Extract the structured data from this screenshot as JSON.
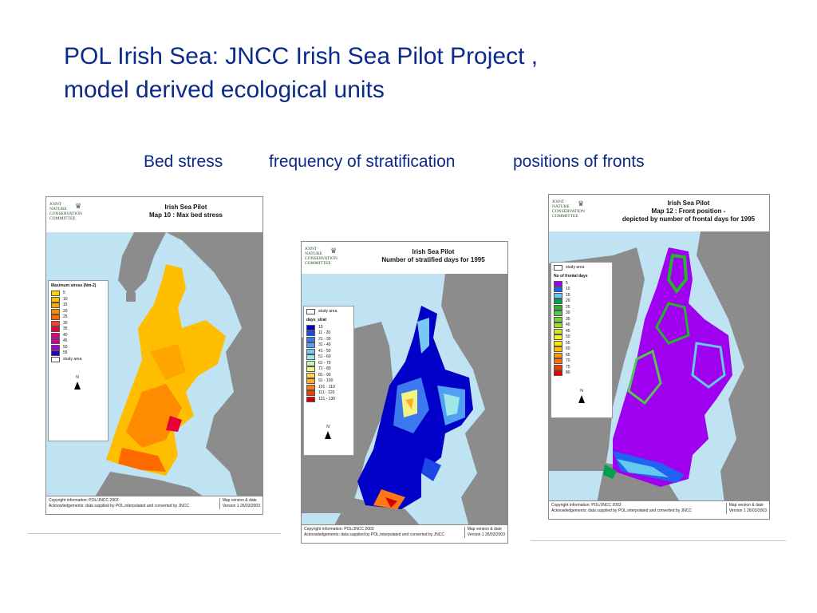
{
  "slide": {
    "title_line1": "POL Irish Sea: JNCC Irish Sea Pilot Project ,",
    "title_line2": "model derived ecological units",
    "subtitles": [
      "Bed stress",
      "frequency of stratification",
      "positions of fronts"
    ]
  },
  "colors": {
    "title": "#0a2a8c",
    "sea": "#bfe3f3",
    "land": "#8c8c8c"
  },
  "maps": [
    {
      "logo": [
        "JOINT",
        "NATURE",
        "CONSERVATION",
        "COMMITTEE"
      ],
      "title_line1": "Irish Sea Pilot",
      "title_line2": "Map 10 : Max bed stress",
      "title_line3": "",
      "legend_title": "Maximum stress (Nm-2)",
      "legend": [
        {
          "label": "5",
          "color": "#ffd200"
        },
        {
          "label": "10",
          "color": "#ffbe00"
        },
        {
          "label": "15",
          "color": "#ffa500"
        },
        {
          "label": "20",
          "color": "#ff8c00"
        },
        {
          "label": "25",
          "color": "#ff6a00"
        },
        {
          "label": "30",
          "color": "#ff3c1e"
        },
        {
          "label": "35",
          "color": "#e6003c"
        },
        {
          "label": "40",
          "color": "#e6007a"
        },
        {
          "label": "45",
          "color": "#c800a0"
        },
        {
          "label": "50",
          "color": "#a000c8"
        },
        {
          "label": "55",
          "color": "#2800c8"
        }
      ],
      "legend_extra": "study area",
      "north": "N",
      "copyright": "Copyright information: POL/JNCC 2003",
      "ack": "Acknowledgements: data supplied by POL,interpolated and converted by JNCC",
      "version_label": "Map version & date",
      "version": "Version 1 26/03/2003"
    },
    {
      "logo": [
        "JOINT",
        "NATURE",
        "CONSERVATION",
        "COMMITTEE"
      ],
      "title_line1": "Irish Sea Pilot",
      "title_line2": "Number of stratified days for 1995",
      "title_line3": "",
      "legend_top": "study area",
      "legend_title": "days_strat",
      "legend": [
        {
          "label": "10",
          "color": "#0000c8"
        },
        {
          "label": "11 - 20",
          "color": "#1e46e6"
        },
        {
          "label": "21 - 30",
          "color": "#3c78f0"
        },
        {
          "label": "31 - 40",
          "color": "#50a0f5"
        },
        {
          "label": "41 - 50",
          "color": "#78c8f5"
        },
        {
          "label": "51 - 60",
          "color": "#a0e6e6"
        },
        {
          "label": "61 - 70",
          "color": "#c8f5b4"
        },
        {
          "label": "71 - 80",
          "color": "#f0f582"
        },
        {
          "label": "81 - 90",
          "color": "#ffd24b"
        },
        {
          "label": "91 - 100",
          "color": "#ffaa28"
        },
        {
          "label": "101 - 110",
          "color": "#ff7814"
        },
        {
          "label": "111 - 120",
          "color": "#f03c0a"
        },
        {
          "label": "121 - 130",
          "color": "#d20000"
        }
      ],
      "north": "N",
      "copyright": "Copyright information: POL/JNCC 2003",
      "ack": "Acknowledgements: data supplied by POL,interpolated and converted by JNCC",
      "version_label": "Map version & date",
      "version": "Version 1 26/03/2003"
    },
    {
      "logo": [
        "JOINT",
        "NATURE",
        "CONSERVATION",
        "COMMITTEE"
      ],
      "title_line1": "Irish Sea Pilot",
      "title_line2": "Map 12 : Front position -",
      "title_line3": "depicted by number of frontal days for 1995",
      "legend_top": "study area",
      "legend_title": "No of frontal days",
      "legend": [
        {
          "label": "5",
          "color": "#a000f0"
        },
        {
          "label": "10",
          "color": "#1e64f0"
        },
        {
          "label": "15",
          "color": "#64c8f0"
        },
        {
          "label": "20",
          "color": "#00a050"
        },
        {
          "label": "25",
          "color": "#28b428"
        },
        {
          "label": "30",
          "color": "#50c850"
        },
        {
          "label": "35",
          "color": "#78d23c"
        },
        {
          "label": "40",
          "color": "#a0dc28"
        },
        {
          "label": "45",
          "color": "#d2e628"
        },
        {
          "label": "50",
          "color": "#f0f028"
        },
        {
          "label": "55",
          "color": "#ffe600"
        },
        {
          "label": "60",
          "color": "#ffbe00"
        },
        {
          "label": "65",
          "color": "#ff9600"
        },
        {
          "label": "70",
          "color": "#ff6e00"
        },
        {
          "label": "75",
          "color": "#f03c00"
        },
        {
          "label": "80",
          "color": "#e60000"
        }
      ],
      "north": "N",
      "copyright": "Copyright information: POL/JNCC 2003",
      "ack": "Acknowledgements: data supplied by POL,interpolated and converted by JNCC",
      "version_label": "Map version & date",
      "version": "Version 1 26/03/2003"
    }
  ]
}
